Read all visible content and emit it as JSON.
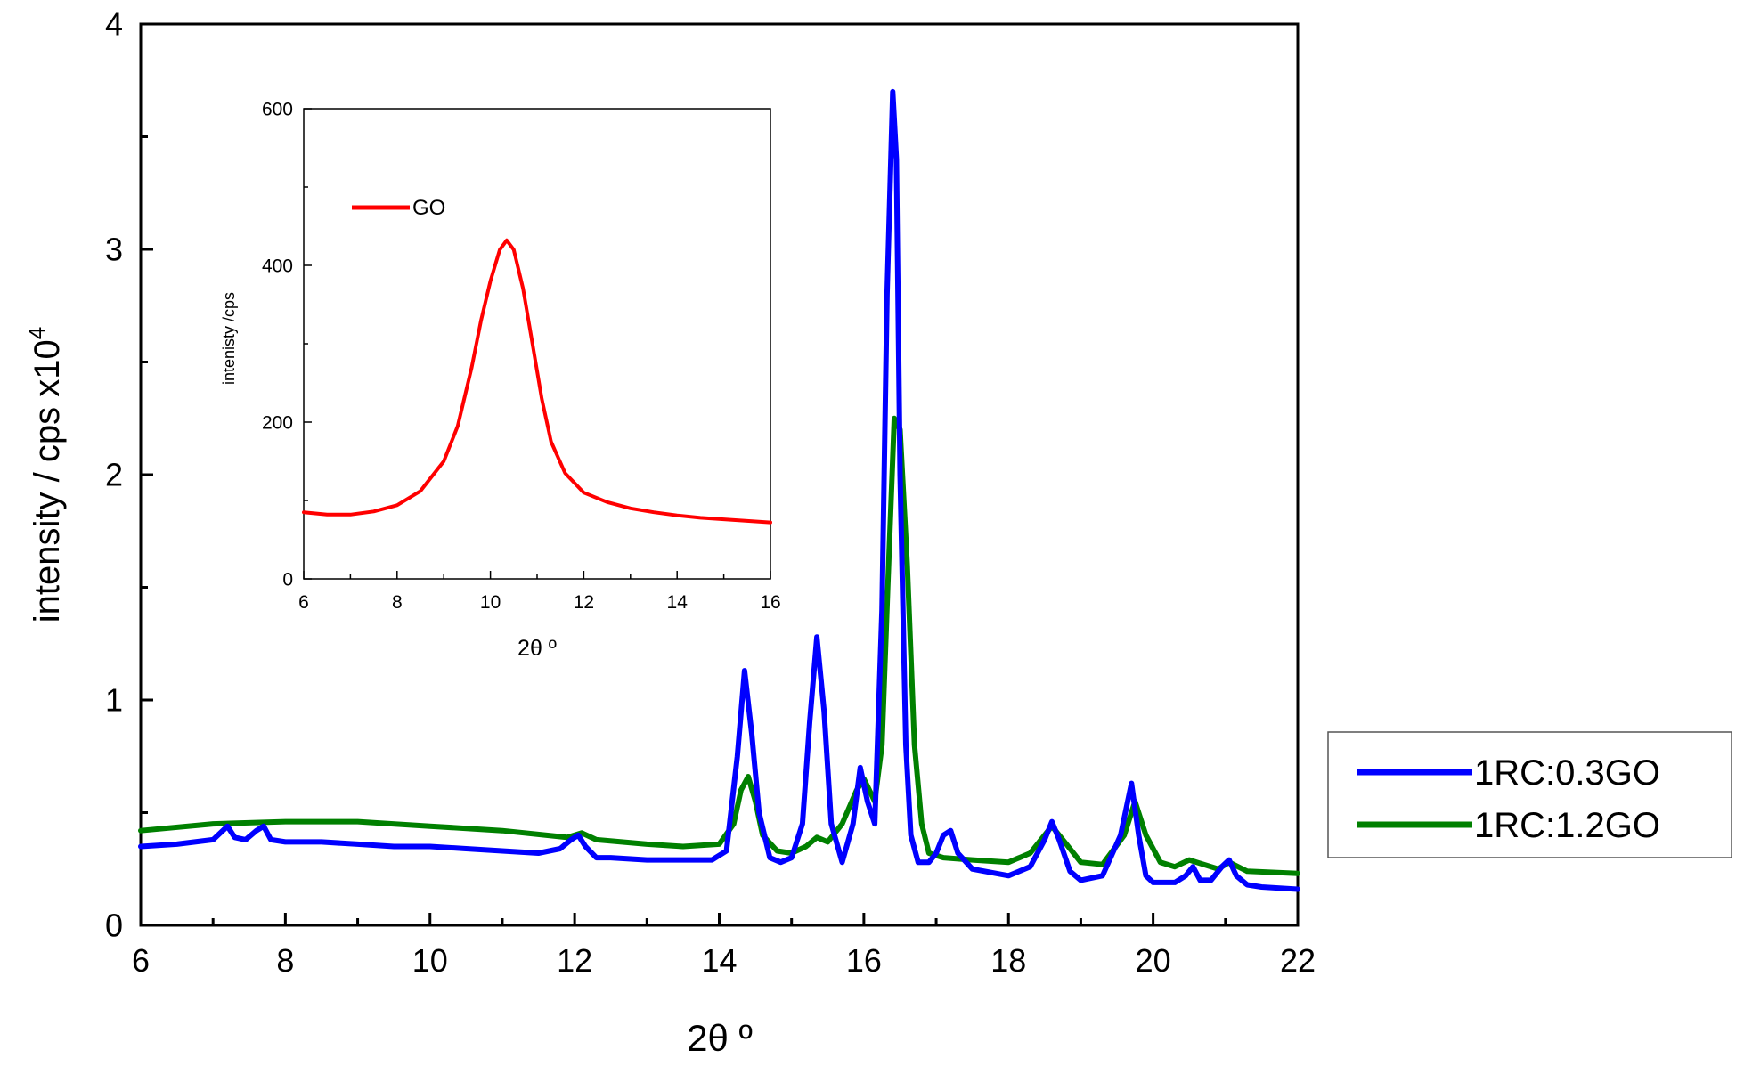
{
  "chart_data": [
    {
      "type": "line",
      "name": "main",
      "xlabel": "2θ º",
      "ylabel": "intensity / cps x10",
      "ylabel_exp": "4",
      "xlim": [
        6,
        22
      ],
      "ylim": [
        0,
        4
      ],
      "xticks": [
        6,
        8,
        10,
        12,
        14,
        16,
        18,
        20,
        22
      ],
      "xtick_labels": [
        "6",
        "8",
        "10",
        "12",
        "14",
        "16",
        "18",
        "20",
        "22"
      ],
      "yticks": [
        0,
        1,
        2,
        3,
        4
      ],
      "ytick_labels": [
        "0",
        "1",
        "2",
        "3",
        "4"
      ],
      "legend_position": "outside-right",
      "series": [
        {
          "name": "1RC:0.3GO",
          "label": "1RC:0.3GO",
          "color": "#0000ff",
          "x": [
            6.0,
            6.5,
            7.0,
            7.1,
            7.2,
            7.3,
            7.45,
            7.6,
            7.7,
            7.8,
            8.0,
            8.5,
            9.0,
            9.5,
            10.0,
            10.5,
            11.0,
            11.5,
            11.8,
            11.95,
            12.05,
            12.15,
            12.3,
            12.5,
            13.0,
            13.5,
            13.9,
            14.1,
            14.25,
            14.35,
            14.45,
            14.55,
            14.7,
            14.85,
            15.0,
            15.15,
            15.25,
            15.35,
            15.45,
            15.55,
            15.7,
            15.85,
            15.95,
            16.05,
            16.15,
            16.25,
            16.32,
            16.4,
            16.45,
            16.5,
            16.58,
            16.65,
            16.75,
            16.9,
            17.0,
            17.1,
            17.2,
            17.3,
            17.5,
            18.0,
            18.3,
            18.5,
            18.6,
            18.7,
            18.85,
            19.0,
            19.3,
            19.55,
            19.7,
            19.8,
            19.9,
            20.0,
            20.3,
            20.45,
            20.55,
            20.65,
            20.8,
            20.95,
            21.05,
            21.15,
            21.3,
            21.5,
            22.0
          ],
          "y": [
            0.35,
            0.36,
            0.38,
            0.41,
            0.44,
            0.39,
            0.38,
            0.42,
            0.44,
            0.38,
            0.37,
            0.37,
            0.36,
            0.35,
            0.35,
            0.34,
            0.33,
            0.32,
            0.34,
            0.38,
            0.4,
            0.35,
            0.3,
            0.3,
            0.29,
            0.29,
            0.29,
            0.33,
            0.75,
            1.13,
            0.85,
            0.5,
            0.3,
            0.28,
            0.3,
            0.45,
            0.9,
            1.28,
            0.95,
            0.45,
            0.28,
            0.45,
            0.7,
            0.55,
            0.45,
            1.4,
            2.8,
            3.7,
            3.4,
            2.0,
            0.8,
            0.4,
            0.28,
            0.28,
            0.32,
            0.4,
            0.42,
            0.32,
            0.25,
            0.22,
            0.26,
            0.38,
            0.46,
            0.38,
            0.24,
            0.2,
            0.22,
            0.4,
            0.63,
            0.4,
            0.22,
            0.19,
            0.19,
            0.22,
            0.26,
            0.2,
            0.2,
            0.26,
            0.29,
            0.22,
            0.18,
            0.17,
            0.16
          ]
        },
        {
          "name": "1RC:1.2GO",
          "label": "1RC:1.2GO",
          "color": "#008000",
          "x": [
            6.0,
            7.0,
            8.0,
            9.0,
            10.0,
            11.0,
            11.9,
            12.1,
            12.3,
            13.0,
            13.5,
            14.0,
            14.2,
            14.3,
            14.4,
            14.5,
            14.6,
            14.8,
            15.0,
            15.2,
            15.35,
            15.5,
            15.7,
            15.9,
            16.0,
            16.15,
            16.25,
            16.33,
            16.42,
            16.5,
            16.6,
            16.7,
            16.8,
            16.9,
            17.1,
            17.5,
            18.0,
            18.3,
            18.5,
            18.6,
            18.8,
            19.0,
            19.3,
            19.6,
            19.75,
            19.9,
            20.1,
            20.3,
            20.5,
            20.6,
            20.9,
            21.05,
            21.3,
            22.0
          ],
          "y": [
            0.42,
            0.45,
            0.46,
            0.46,
            0.44,
            0.42,
            0.39,
            0.41,
            0.38,
            0.36,
            0.35,
            0.36,
            0.45,
            0.6,
            0.66,
            0.55,
            0.4,
            0.33,
            0.32,
            0.35,
            0.39,
            0.37,
            0.45,
            0.6,
            0.65,
            0.55,
            0.8,
            1.5,
            2.25,
            2.2,
            1.6,
            0.8,
            0.45,
            0.32,
            0.3,
            0.29,
            0.28,
            0.32,
            0.4,
            0.44,
            0.36,
            0.28,
            0.27,
            0.4,
            0.55,
            0.4,
            0.28,
            0.26,
            0.29,
            0.28,
            0.25,
            0.28,
            0.24,
            0.23
          ]
        }
      ]
    },
    {
      "type": "line",
      "name": "inset",
      "xlabel": "2θ º",
      "ylabel": "intenisty /cps",
      "xlim": [
        6,
        16
      ],
      "ylim": [
        0,
        600
      ],
      "xticks": [
        6,
        8,
        10,
        12,
        14,
        16
      ],
      "xtick_labels": [
        "6",
        "8",
        "10",
        "12",
        "14",
        "16"
      ],
      "yticks": [
        0,
        200,
        400,
        600
      ],
      "ytick_labels": [
        "0",
        "200",
        "400",
        "600"
      ],
      "legend_position": "top-left",
      "series": [
        {
          "name": "GO",
          "label": "GO",
          "color": "#ff0000",
          "x": [
            6.0,
            6.5,
            7.0,
            7.5,
            8.0,
            8.5,
            9.0,
            9.3,
            9.6,
            9.8,
            10.0,
            10.2,
            10.35,
            10.5,
            10.7,
            10.9,
            11.1,
            11.3,
            11.6,
            12.0,
            12.5,
            13.0,
            13.5,
            14.0,
            14.5,
            15.0,
            15.5,
            16.0
          ],
          "y": [
            85,
            82,
            82,
            86,
            94,
            112,
            150,
            195,
            270,
            330,
            380,
            420,
            432,
            420,
            370,
            300,
            230,
            175,
            135,
            110,
            98,
            90,
            85,
            81,
            78,
            76,
            74,
            72
          ]
        }
      ]
    }
  ]
}
